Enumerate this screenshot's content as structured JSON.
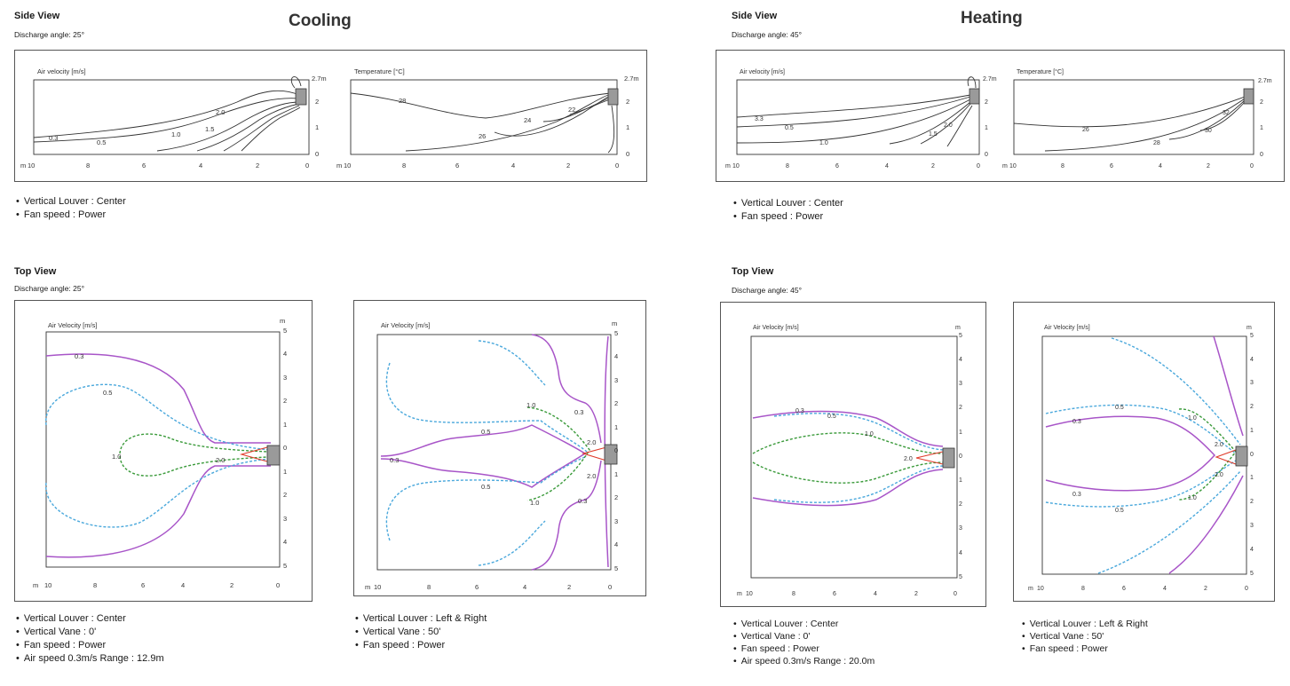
{
  "cooling": {
    "mode_title": "Cooling",
    "side": {
      "header": "Side View",
      "discharge": "Discharge angle: 25°",
      "velocity_label": "Air velocity [m/s]",
      "temp_label": "Temperature [°C]",
      "height_label": "2.7m",
      "velocity_contours": [
        "0.3",
        "0.5",
        "1.0",
        "1.5",
        "2.0"
      ],
      "temp_contours": [
        "28",
        "26",
        "24",
        "22"
      ],
      "notes": [
        "Vertical Louver : Center",
        "Fan speed : Power"
      ]
    },
    "top": {
      "header": "Top View",
      "discharge": "Discharge angle: 25°",
      "left_label": "Air Velocity [m/s]",
      "right_label": "Air Velocity [m/s]",
      "left_contours": [
        "0.3",
        "0.5",
        "1.0",
        "2.0"
      ],
      "right_contours": [
        "1.0",
        "0.3",
        "0.5",
        "2.0",
        "0.3",
        "2.0",
        "0.5",
        "1.0",
        "0.3"
      ],
      "notes_left": [
        "Vertical Louver : Center",
        "Vertical Vane : 0'",
        "Fan speed : Power",
        "Air speed 0.3m/s Range : 12.9m"
      ],
      "notes_right": [
        "Vertical Louver : Left & Right",
        "Vertical Vane : 50'",
        "Fan speed : Power"
      ]
    }
  },
  "heating": {
    "mode_title": "Heating",
    "side": {
      "header": "Side View",
      "discharge": "Discharge angle: 45°",
      "velocity_label": "Air velocity [m/s]",
      "temp_label": "Temperature [°C]",
      "height_label": "2.7m",
      "velocity_contours": [
        "3.3",
        "0.5",
        "1.0",
        "1.5",
        "2.0"
      ],
      "temp_contours": [
        "26",
        "28",
        "30",
        "32"
      ],
      "notes": [
        "Vertical Louver : Center",
        "Fan speed : Power"
      ]
    },
    "top": {
      "header": "Top View",
      "discharge": "Discharge angle: 45°",
      "left_label": "Air Velocity [m/s]",
      "right_label": "Air Velocity [m/s]",
      "left_contours": [
        "0.3",
        "0.5",
        "1.0",
        "2.0"
      ],
      "right_contours": [
        "0.5",
        "0.3",
        "1.0",
        "2.0",
        "2.0",
        "0.3",
        "1.0",
        "0.5"
      ],
      "notes_left": [
        "Vertical Louver : Center",
        "Vertical Vane : 0'",
        "Fan speed : Power",
        "Air speed 0.3m/s Range : 20.0m"
      ],
      "notes_right": [
        "Vertical Louver : Left & Right",
        "Vertical Vane : 50'",
        "Fan speed : Power"
      ]
    }
  },
  "axes": {
    "x_unit": "m",
    "y_unit": "m",
    "side_x_ticks": [
      "10",
      "8",
      "6",
      "4",
      "2",
      "0"
    ],
    "side_y_ticks": [
      "2",
      "1",
      "0"
    ],
    "top_x_ticks": [
      "10",
      "8",
      "6",
      "4",
      "2",
      "0"
    ],
    "top_y_ticks": [
      "5",
      "4",
      "3",
      "2",
      "1",
      "0",
      "1",
      "2",
      "3",
      "4",
      "5"
    ]
  },
  "colors": {
    "contour_0_3": "#a855c8",
    "contour_0_5": "#4aa8dc",
    "contour_1_0": "#3a9a3a",
    "contour_2_0": "#e03a2a",
    "unit": "#9a9a9a"
  }
}
